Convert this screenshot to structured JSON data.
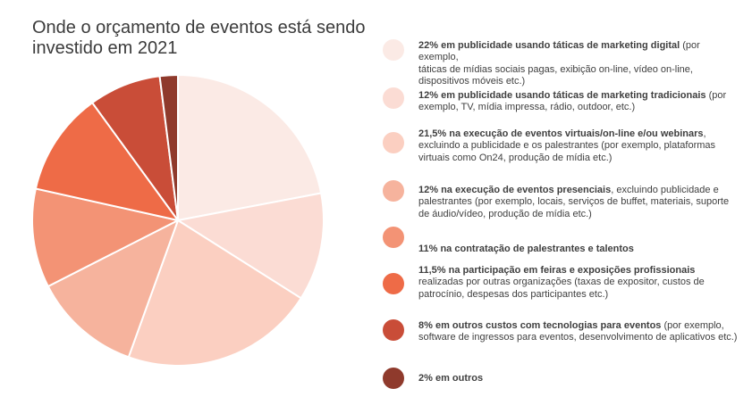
{
  "title": "Onde o orçamento de eventos está sendo\ninvestido em 2021",
  "chart_data": {
    "type": "pie",
    "values": [
      22,
      12,
      21.5,
      12,
      11,
      11.5,
      8,
      2
    ],
    "colors": [
      "#fbeae5",
      "#fbdcd4",
      "#fbcfc1",
      "#f6b39d",
      "#f39375",
      "#ee6b47",
      "#c94d38",
      "#8f3a2c"
    ],
    "start_angle_deg": 0,
    "direction": "clockwise"
  },
  "legend": [
    {
      "bold": "22% em publicidade usando táticas de marketing digital",
      "rest": " (por exemplo,\ntáticas de mídias sociais pagas, exibição on-line, vídeo on-line, dispositivos móveis etc.)",
      "color": "#fbeae5"
    },
    {
      "bold": "12% em publicidade usando táticas de marketing tradicionais",
      "rest": " (por exemplo, TV, mídia impressa, rádio, outdoor, etc.)",
      "color": "#fbdcd4"
    },
    {
      "bold": "21,5% na execução de eventos virtuais/on-line e/ou webinars",
      "rest": ", excluindo a publicidade e os palestrantes (por exemplo, plataformas virtuais como On24, produção de mídia etc.)",
      "color": "#fbcfc1"
    },
    {
      "bold": "12% na execução de eventos presenciais",
      "rest": ", excluindo publicidade e palestrantes (por exemplo, locais, serviços de buffet, materiais, suporte de áudio/vídeo, produção de mídia etc.)",
      "color": "#f6b39d"
    },
    {
      "bold": "11% na contratação de palestrantes e talentos",
      "rest": "",
      "color": "#f39375"
    },
    {
      "bold": "11,5% na participação em feiras e exposições profissionais",
      "rest": " realizadas por outras organizações (taxas de expositor, custos de patrocínio, despesas dos participantes etc.)",
      "color": "#ee6b47"
    },
    {
      "bold": "8% em outros custos com tecnologias para eventos",
      "rest": " (por exemplo, software de ingressos para eventos, desenvolvimento de aplicativos etc.)",
      "color": "#c94d38"
    },
    {
      "bold": "2% em outros",
      "rest": "",
      "color": "#8f3a2c"
    }
  ]
}
